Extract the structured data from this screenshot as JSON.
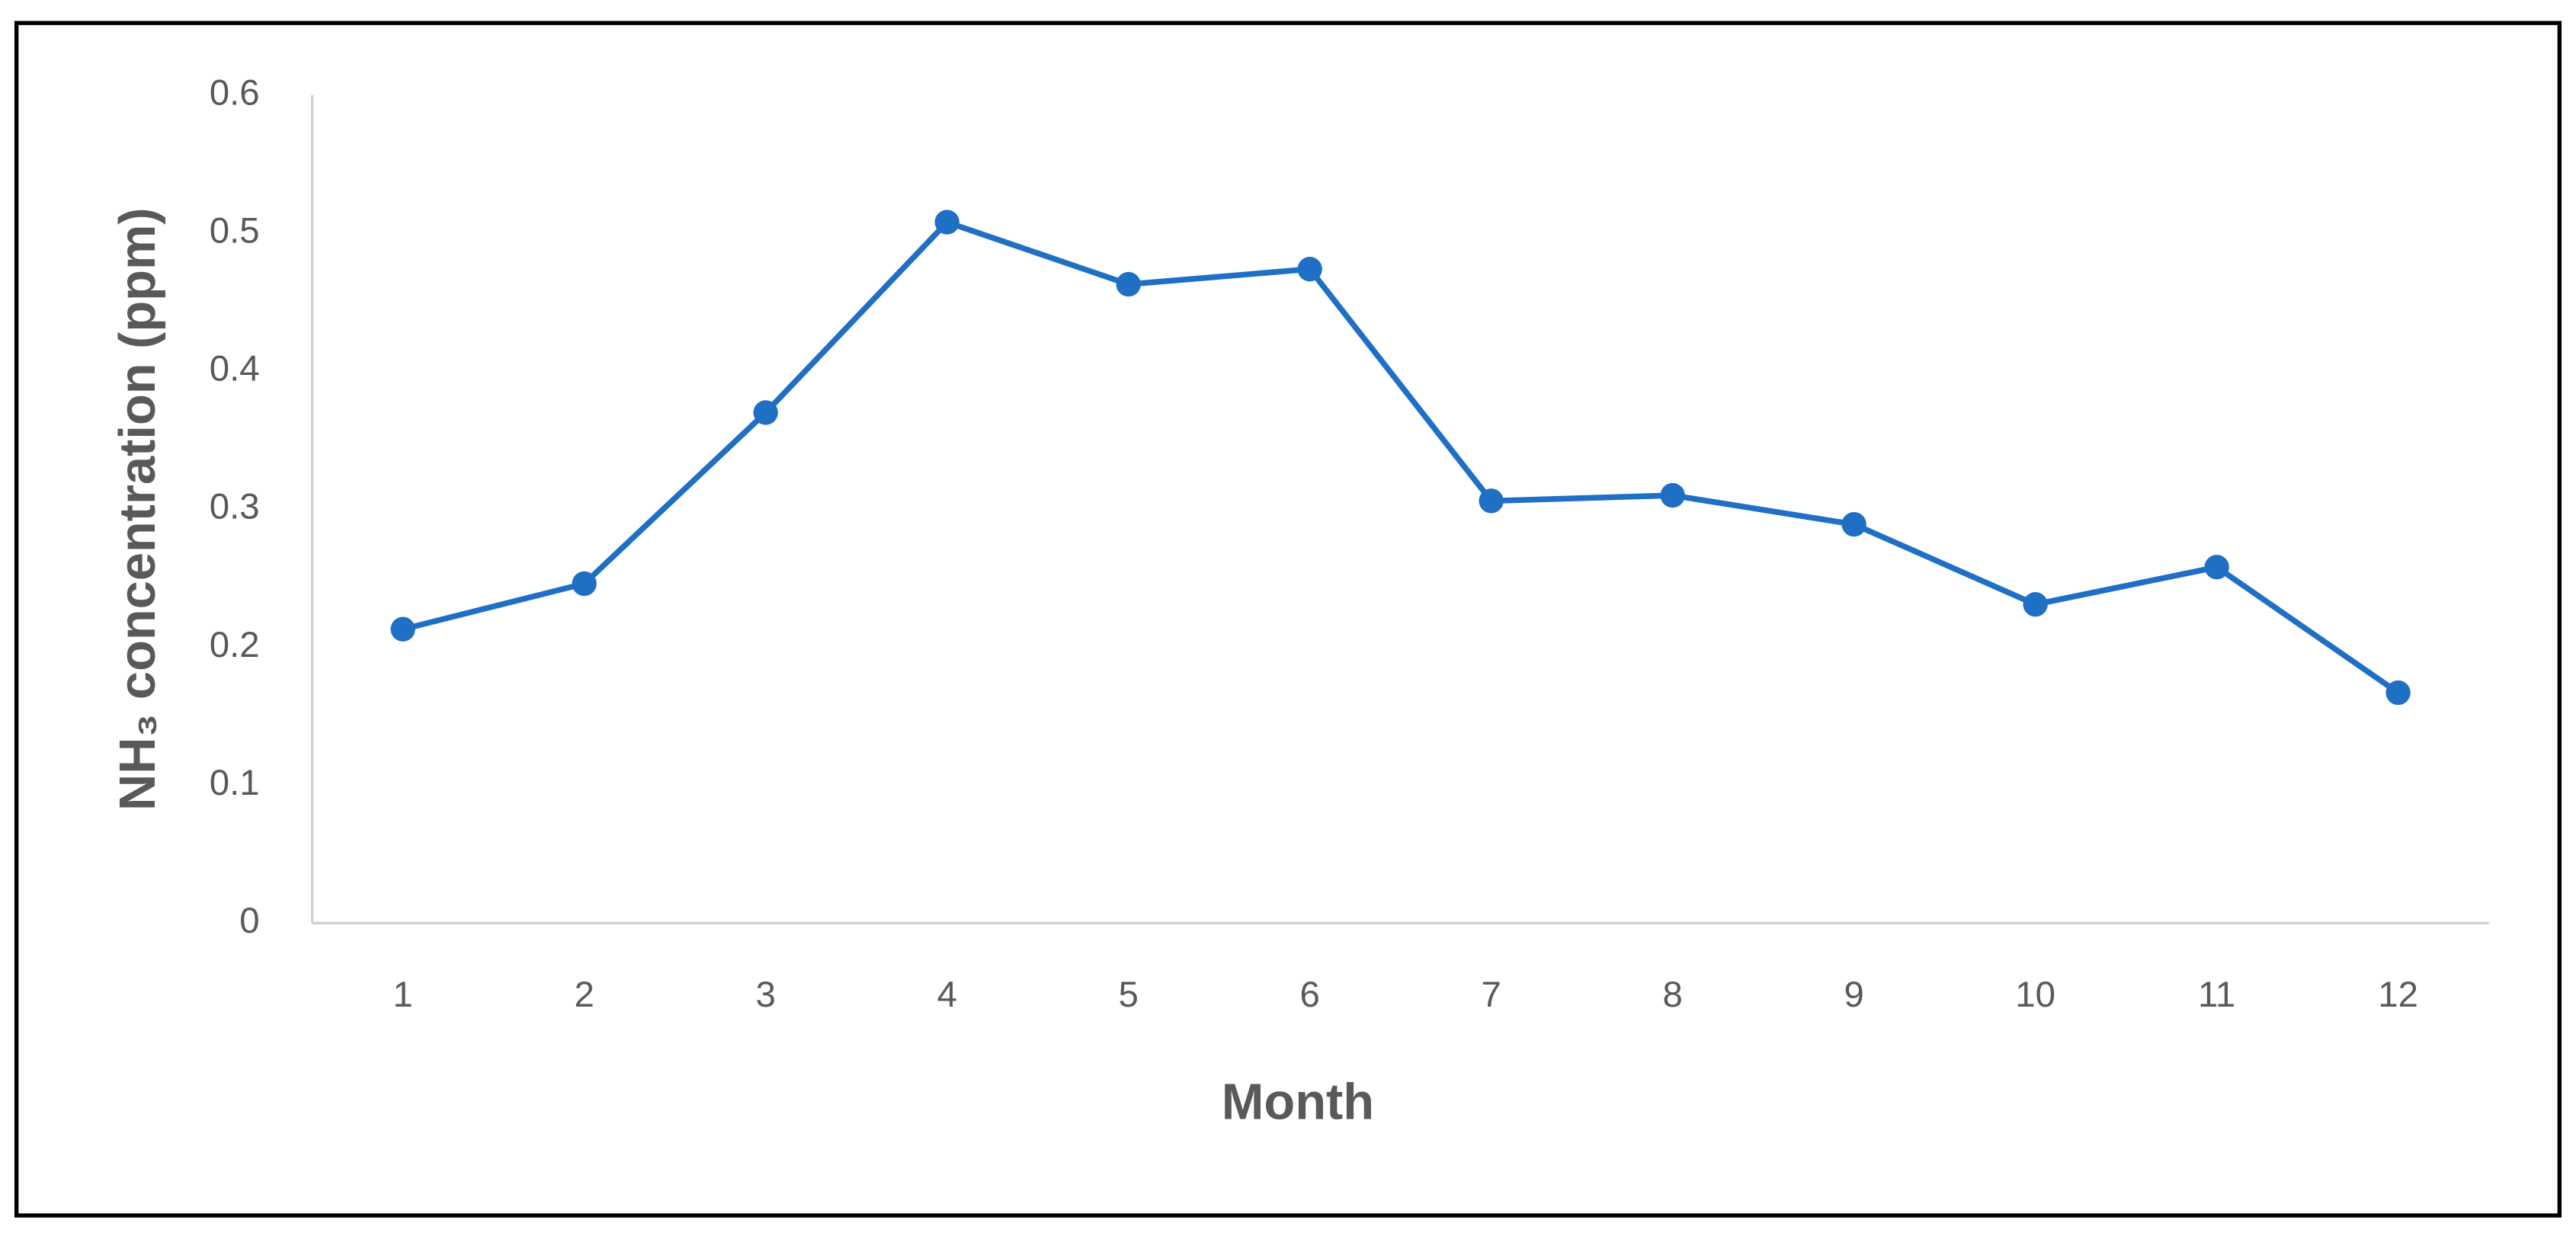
{
  "chart_data": {
    "type": "line",
    "x_label": "Month",
    "y_label": "NH₃ concentration (ppm)",
    "categories": [
      "1",
      "2",
      "3",
      "4",
      "5",
      "6",
      "7",
      "8",
      "9",
      "10",
      "11",
      "12"
    ],
    "series": [
      {
        "name": "NH₃",
        "color": "#1f6fc5",
        "values": [
          0.213,
          0.246,
          0.37,
          0.508,
          0.463,
          0.474,
          0.306,
          0.31,
          0.289,
          0.231,
          0.258,
          0.167
        ]
      }
    ],
    "ylim": [
      0,
      0.6
    ],
    "yticks": [
      0,
      0.1,
      0.2,
      0.3,
      0.4,
      0.5,
      0.6
    ],
    "grid": false
  }
}
